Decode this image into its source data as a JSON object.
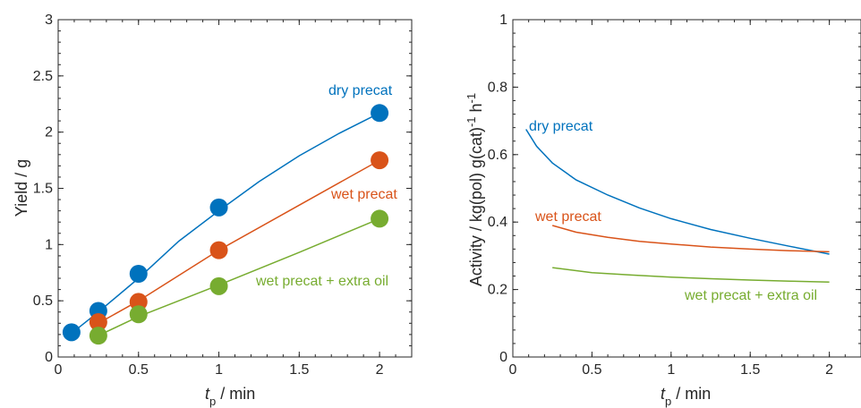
{
  "chart_data": [
    {
      "type": "scatter",
      "xlim": [
        0,
        2.2
      ],
      "ylim": [
        0,
        3
      ],
      "xticks": [
        "0",
        "0.5",
        "1",
        "1.5",
        "2"
      ],
      "yticks": [
        "0",
        "0.5",
        "1",
        "1.5",
        "2",
        "2.5",
        "3"
      ],
      "xlabel_main": "t",
      "xlabel_sub": "p",
      "xlabel_rest": " / min",
      "ylabel": "Yield / g",
      "grid": false,
      "series": [
        {
          "name": "dry precat",
          "color": "#0072BD",
          "x": [
            0.083,
            0.25,
            0.5,
            1,
            2
          ],
          "y": [
            0.22,
            0.41,
            0.74,
            1.33,
            2.17
          ],
          "fit_x": [
            0.083,
            0.25,
            0.5,
            0.75,
            1,
            1.25,
            1.5,
            1.75,
            2
          ],
          "fit_y": [
            0.21,
            0.4,
            0.7,
            1.03,
            1.3,
            1.56,
            1.79,
            1.99,
            2.17
          ]
        },
        {
          "name": "wet precat",
          "color": "#D95319",
          "x": [
            0.25,
            0.5,
            1,
            2
          ],
          "y": [
            0.31,
            0.49,
            0.95,
            1.75
          ],
          "fit_x": [
            0.25,
            0.5,
            1,
            1.5,
            2
          ],
          "fit_y": [
            0.3,
            0.5,
            0.95,
            1.35,
            1.75
          ]
        },
        {
          "name": "wet precat + extra oil",
          "color": "#77AC30",
          "x": [
            0.25,
            0.5,
            1,
            2
          ],
          "y": [
            0.19,
            0.38,
            0.63,
            1.23
          ],
          "fit_x": [
            0.25,
            0.5,
            1,
            1.5,
            2
          ],
          "fit_y": [
            0.19,
            0.36,
            0.64,
            0.93,
            1.23
          ]
        }
      ]
    },
    {
      "type": "line",
      "xlim": [
        0,
        2.2
      ],
      "ylim": [
        0,
        1
      ],
      "xticks": [
        "0",
        "0.5",
        "1",
        "1.5",
        "2"
      ],
      "yticks": [
        "0",
        "0.2",
        "0.4",
        "0.6",
        "0.8",
        "1"
      ],
      "xlabel_main": "t",
      "xlabel_sub": "p",
      "xlabel_rest": " / min",
      "ylabel": "Activity / kg(pol) g(cat)",
      "ylabel_sup1": "-1",
      "ylabel_unit": " h",
      "ylabel_sup2": "-1",
      "grid": false,
      "series": [
        {
          "name": "dry precat",
          "color": "#0072BD",
          "x": [
            0.083,
            0.15,
            0.25,
            0.4,
            0.6,
            0.8,
            1.0,
            1.25,
            1.5,
            1.75,
            2.0
          ],
          "y": [
            0.675,
            0.625,
            0.575,
            0.525,
            0.48,
            0.442,
            0.41,
            0.378,
            0.352,
            0.328,
            0.305
          ]
        },
        {
          "name": "wet precat",
          "color": "#D95319",
          "x": [
            0.25,
            0.4,
            0.6,
            0.8,
            1.0,
            1.25,
            1.5,
            1.75,
            2.0
          ],
          "y": [
            0.39,
            0.37,
            0.355,
            0.343,
            0.335,
            0.326,
            0.32,
            0.315,
            0.312
          ]
        },
        {
          "name": "wet precat + extra oil",
          "color": "#77AC30",
          "x": [
            0.25,
            0.5,
            0.75,
            1.0,
            1.25,
            1.5,
            1.75,
            2.0
          ],
          "y": [
            0.265,
            0.25,
            0.243,
            0.237,
            0.232,
            0.228,
            0.225,
            0.222
          ]
        }
      ]
    }
  ]
}
